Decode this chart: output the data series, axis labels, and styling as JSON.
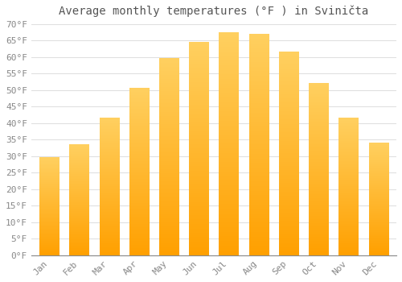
{
  "title": "Average monthly temperatures (°F ) in Sviničta",
  "months": [
    "Jan",
    "Feb",
    "Mar",
    "Apr",
    "May",
    "Jun",
    "Jul",
    "Aug",
    "Sep",
    "Oct",
    "Nov",
    "Dec"
  ],
  "values": [
    29.5,
    33.5,
    41.5,
    50.5,
    59.5,
    64.5,
    67.5,
    67.0,
    61.5,
    52.0,
    41.5,
    34.0
  ],
  "bar_color_light": "#FFD060",
  "bar_color_dark": "#FFA000",
  "ylim": [
    0,
    70
  ],
  "yticks": [
    0,
    5,
    10,
    15,
    20,
    25,
    30,
    35,
    40,
    45,
    50,
    55,
    60,
    65,
    70
  ],
  "ytick_labels": [
    "0°F",
    "5°F",
    "10°F",
    "15°F",
    "20°F",
    "25°F",
    "30°F",
    "35°F",
    "40°F",
    "45°F",
    "50°F",
    "55°F",
    "60°F",
    "65°F",
    "70°F"
  ],
  "background_color": "#ffffff",
  "grid_color": "#e0e0e0",
  "title_fontsize": 10,
  "tick_fontsize": 8,
  "font_color": "#888888",
  "bar_width": 0.65
}
